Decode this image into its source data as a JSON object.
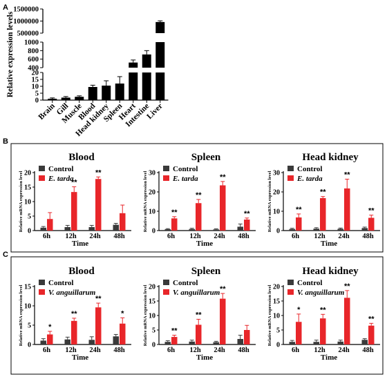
{
  "panel_labels": [
    "A",
    "B",
    "C"
  ],
  "colors": {
    "bar_dark": "#000000",
    "control": "#3a3a3a",
    "infected": "#e8262a",
    "axis": "#000000"
  },
  "chart_data": [
    {
      "id": "A",
      "type": "bar",
      "ylabel": "Relative expression levels",
      "categories": [
        "Brain",
        "Gill",
        "Muscle",
        "Blood",
        "Head kidney",
        "Spleen",
        "Heart",
        "Intestine",
        "Liver"
      ],
      "values": [
        1,
        1.8,
        2.4,
        9.5,
        10.5,
        12,
        520,
        710,
        960000
      ],
      "errors": [
        0.6,
        0.8,
        0.7,
        1.3,
        3.5,
        5,
        60,
        90,
        50000
      ],
      "broken_axis": [
        {
          "range": [
            0,
            20
          ],
          "ticks": [
            0,
            5,
            10,
            15,
            20
          ]
        },
        {
          "range": [
            400,
            1000
          ],
          "ticks": [
            400,
            600,
            800,
            1000
          ]
        },
        {
          "range": [
            500000,
            1500000
          ],
          "ticks": [
            500000,
            1000000,
            1500000
          ]
        }
      ],
      "ytick_labels": [
        "0",
        "5",
        "10",
        "15",
        "20",
        "400",
        "600",
        "800",
        "1000",
        "500000",
        "1000000",
        "1500000"
      ]
    },
    {
      "id": "B1",
      "type": "bar",
      "title": "Blood",
      "ylabel": "Relative mRNA expression level",
      "xlabel": "Time",
      "categories": [
        "6h",
        "12h",
        "24h",
        "48h"
      ],
      "ylim": [
        0,
        20
      ],
      "yticks": [
        0,
        5,
        10,
        15,
        20
      ],
      "legend": [
        "Control",
        "E. tarda"
      ],
      "series": [
        {
          "name": "Control",
          "values": [
            1.0,
            1.2,
            1.2,
            2.0
          ],
          "errors": [
            0.4,
            0.6,
            0.6,
            0.5
          ]
        },
        {
          "name": "E. tarda",
          "values": [
            4.0,
            13.3,
            17.8,
            6.0
          ],
          "errors": [
            2.2,
            1.8,
            0.7,
            2.8
          ]
        }
      ],
      "significance": [
        "",
        "**",
        "**",
        ""
      ]
    },
    {
      "id": "B2",
      "type": "bar",
      "title": "Spleen",
      "ylabel": "Relative mRNA expression level",
      "xlabel": "Time",
      "categories": [
        "6h",
        "12h",
        "24h",
        "48h"
      ],
      "ylim": [
        0,
        30
      ],
      "yticks": [
        0,
        10,
        20,
        30
      ],
      "legend": [
        "Control",
        "E. tarda"
      ],
      "series": [
        {
          "name": "Control",
          "values": [
            0.7,
            0.8,
            0.6,
            2.0
          ],
          "errors": [
            0.3,
            0.4,
            0.3,
            1.4
          ]
        },
        {
          "name": "E. tarda",
          "values": [
            6.3,
            14.2,
            23.4,
            5.7
          ],
          "errors": [
            0.9,
            1.9,
            2.0,
            0.8
          ]
        }
      ],
      "significance": [
        "**",
        "**",
        "**",
        "**"
      ]
    },
    {
      "id": "B3",
      "type": "bar",
      "title": "Head kidney",
      "ylabel": "Relative mRNA expression level",
      "xlabel": "Time",
      "categories": [
        "6h",
        "12h",
        "24h",
        "48h"
      ],
      "ylim": [
        0,
        30
      ],
      "yticks": [
        0,
        10,
        20,
        30
      ],
      "legend": [
        "Control",
        "E. tarda"
      ],
      "series": [
        {
          "name": "Control",
          "values": [
            0.8,
            1.0,
            0.9,
            1.3
          ],
          "errors": [
            0.4,
            0.5,
            0.4,
            0.5
          ]
        },
        {
          "name": "E. tarda",
          "values": [
            6.8,
            16.8,
            21.8,
            6.6
          ],
          "errors": [
            1.8,
            0.8,
            4.8,
            1.4
          ]
        }
      ],
      "significance": [
        "**",
        "**",
        "**",
        "**"
      ]
    },
    {
      "id": "C1",
      "type": "bar",
      "title": "Blood",
      "ylabel": "Relative mRNA expression level",
      "xlabel": "Time",
      "categories": [
        "6h",
        "12h",
        "24h",
        "48h"
      ],
      "ylim": [
        0,
        15
      ],
      "yticks": [
        0,
        5,
        10,
        15
      ],
      "legend": [
        "Control",
        "V. anguillarum"
      ],
      "series": [
        {
          "name": "Control",
          "values": [
            1.0,
            1.3,
            1.2,
            2.1
          ],
          "errors": [
            0.5,
            0.6,
            0.8,
            0.5
          ]
        },
        {
          "name": "V. anguillarum",
          "values": [
            2.6,
            6.1,
            9.6,
            5.4
          ],
          "errors": [
            0.8,
            0.7,
            1.1,
            1.5
          ]
        }
      ],
      "significance": [
        "*",
        "**",
        "**",
        "*"
      ]
    },
    {
      "id": "C2",
      "type": "bar",
      "title": "Spleen",
      "ylabel": "Relative mRNA expression level",
      "xlabel": "Time",
      "categories": [
        "6h",
        "12h",
        "24h",
        "48h"
      ],
      "ylim": [
        0,
        20
      ],
      "yticks": [
        0,
        5,
        10,
        15,
        20
      ],
      "legend": [
        "Control",
        "V. anguillarum"
      ],
      "series": [
        {
          "name": "Control",
          "values": [
            0.9,
            1.0,
            0.8,
            1.9
          ],
          "errors": [
            0.4,
            0.5,
            0.3,
            1.3
          ]
        },
        {
          "name": "V. anguillarum",
          "values": [
            2.6,
            6.8,
            15.8,
            5.0
          ],
          "errors": [
            0.6,
            1.9,
            1.8,
            1.6
          ]
        }
      ],
      "significance": [
        "**",
        "**",
        "**",
        ""
      ]
    },
    {
      "id": "C3",
      "type": "bar",
      "title": "Head kidney",
      "ylabel": "Relative mRNA expression level",
      "xlabel": "Time",
      "categories": [
        "6h",
        "12h",
        "24h",
        "48h"
      ],
      "ylim": [
        0,
        20
      ],
      "yticks": [
        0,
        5,
        10,
        15,
        20
      ],
      "legend": [
        "Control",
        "V. anguillarum"
      ],
      "series": [
        {
          "name": "Control",
          "values": [
            0.9,
            0.9,
            1.0,
            1.6
          ],
          "errors": [
            0.5,
            0.6,
            0.5,
            0.4
          ]
        },
        {
          "name": "V. anguillarum",
          "values": [
            7.8,
            9.0,
            16.1,
            6.5
          ],
          "errors": [
            2.7,
            1.4,
            2.5,
            0.8
          ]
        }
      ],
      "significance": [
        "*",
        "**",
        "**",
        "**"
      ]
    }
  ]
}
